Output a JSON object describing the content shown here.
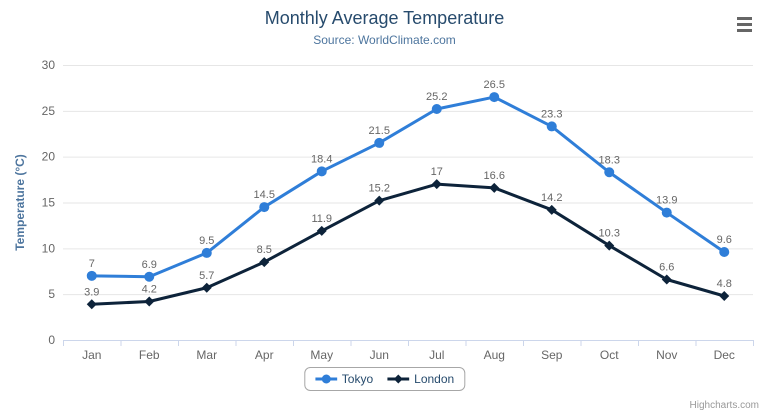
{
  "header": {
    "title": "Monthly Average Temperature",
    "subtitle": "Source: WorldClimate.com"
  },
  "icons": {
    "context_menu": "hamburger"
  },
  "credits_label": "Highcharts.com",
  "colors": {
    "title": "#274b6d",
    "subtitle": "#4d759e",
    "axis_title": "#4d759e",
    "axis_labels": "#666666",
    "data_labels": "#666666",
    "gridline": "#e6e6e6",
    "axis_line": "#ccd6eb",
    "legend_text": "#274b6d",
    "tokyo": "#2f7ed8",
    "london": "#0d233a"
  },
  "chart_data": {
    "type": "line",
    "title": "Monthly Average Temperature",
    "subtitle": "Source: WorldClimate.com",
    "categories": [
      "Jan",
      "Feb",
      "Mar",
      "Apr",
      "May",
      "Jun",
      "Jul",
      "Aug",
      "Sep",
      "Oct",
      "Nov",
      "Dec"
    ],
    "series": [
      {
        "name": "Tokyo",
        "color": "#2f7ed8",
        "marker": "circle",
        "values": [
          7,
          6.9,
          9.5,
          14.5,
          18.4,
          21.5,
          25.2,
          26.5,
          23.3,
          18.3,
          13.9,
          9.6
        ]
      },
      {
        "name": "London",
        "color": "#0d233a",
        "marker": "diamond",
        "values": [
          3.9,
          4.2,
          5.7,
          8.5,
          11.9,
          15.2,
          17,
          16.6,
          14.2,
          10.3,
          6.6,
          4.8
        ]
      }
    ],
    "xlabel": "",
    "ylabel": "Temperature (°C)",
    "ylim": [
      0,
      30
    ],
    "ytick_step": 5,
    "grid": true,
    "data_labels": true,
    "legend_position": "bottom"
  }
}
